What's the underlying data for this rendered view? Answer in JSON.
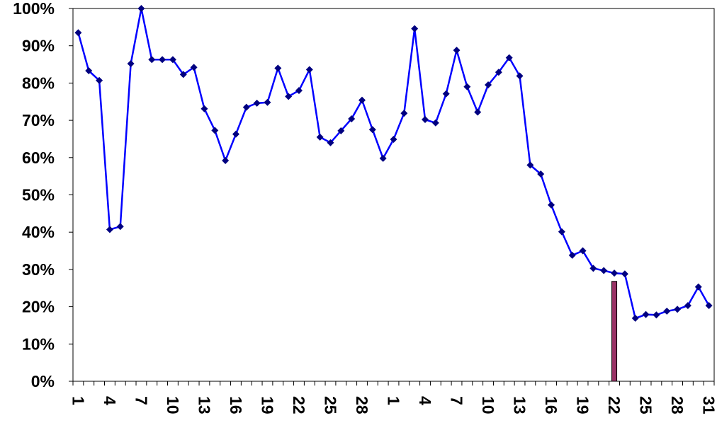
{
  "chart_data": {
    "type": "line",
    "categories": [
      "1",
      null,
      null,
      "4",
      null,
      null,
      "7",
      null,
      null,
      "10",
      null,
      null,
      "13",
      null,
      null,
      "16",
      null,
      null,
      "19",
      null,
      null,
      "22",
      null,
      null,
      "25",
      null,
      null,
      "28",
      null,
      null,
      "1",
      null,
      null,
      "4",
      null,
      null,
      "7",
      null,
      null,
      "10",
      null,
      null,
      "13",
      null,
      null,
      "16",
      null,
      null,
      "19",
      null,
      null,
      "22",
      null,
      null,
      "25",
      null,
      null,
      "28",
      null,
      null,
      "31"
    ],
    "series": [
      {
        "type": "line",
        "color": "#0000ff",
        "marker_color": "#000080",
        "values": [
          93.5,
          83.3,
          80.7,
          40.7,
          41.5,
          85.2,
          100,
          86.3,
          86.3,
          86.3,
          82.3,
          84.2,
          73.1,
          67.3,
          59.2,
          66.3,
          73.5,
          74.6,
          74.8,
          84.0,
          76.4,
          78.0,
          83.6,
          65.5,
          64.0,
          67.2,
          70.4,
          75.4,
          67.5,
          59.8,
          64.9,
          71.9,
          94.6,
          70.2,
          69.3,
          77.1,
          88.8,
          79.0,
          72.2,
          79.5,
          82.9,
          86.8,
          81.9,
          58.0,
          55.6,
          47.3,
          40.1,
          33.8,
          35.0,
          30.3,
          29.7,
          29.0,
          28.8,
          16.9,
          17.9,
          17.8,
          18.8,
          19.3,
          20.3,
          25.3,
          20.3
        ]
      },
      {
        "type": "bar",
        "color": "#993366",
        "values": [
          null,
          null,
          null,
          null,
          null,
          null,
          null,
          null,
          null,
          null,
          null,
          null,
          null,
          null,
          null,
          null,
          null,
          null,
          null,
          null,
          null,
          null,
          null,
          null,
          null,
          null,
          null,
          null,
          null,
          null,
          null,
          null,
          null,
          null,
          null,
          null,
          null,
          null,
          null,
          null,
          null,
          null,
          null,
          null,
          null,
          null,
          null,
          null,
          null,
          null,
          null,
          26.8,
          null,
          null,
          null,
          null,
          null,
          null,
          null,
          null,
          null
        ]
      }
    ],
    "ylim": [
      0,
      100
    ],
    "yticks": [
      {
        "value": 0,
        "label": "0%"
      },
      {
        "value": 10,
        "label": "10%"
      },
      {
        "value": 20,
        "label": "20%"
      },
      {
        "value": 30,
        "label": "30%"
      },
      {
        "value": 40,
        "label": "40%"
      },
      {
        "value": 50,
        "label": "50%"
      },
      {
        "value": 60,
        "label": "60%"
      },
      {
        "value": 70,
        "label": "70%"
      },
      {
        "value": 80,
        "label": "80%"
      },
      {
        "value": 90,
        "label": "90%"
      },
      {
        "value": 100,
        "label": "100%"
      }
    ],
    "grid": false
  }
}
